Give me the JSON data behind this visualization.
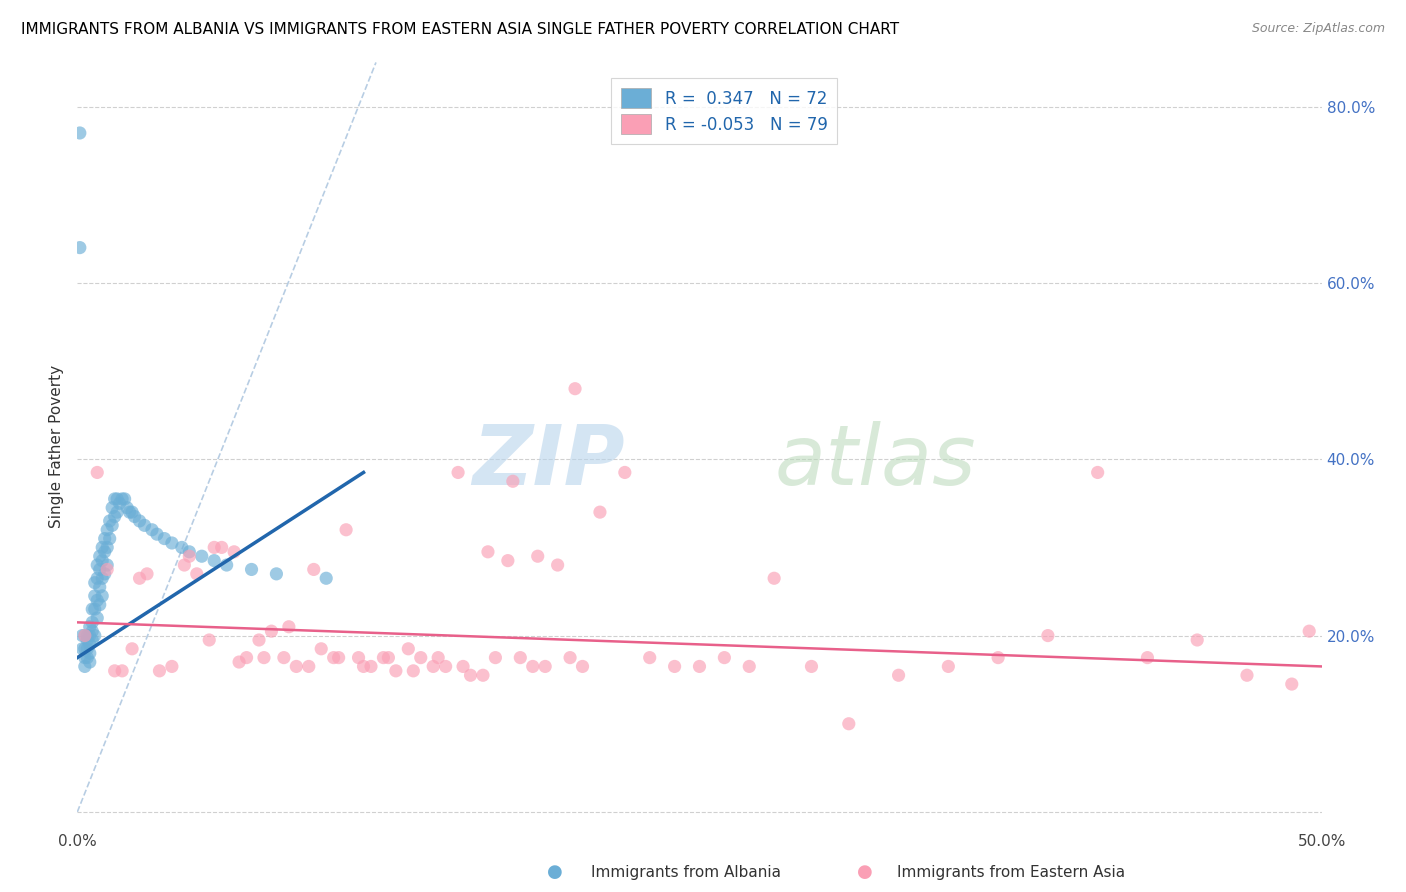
{
  "title": "IMMIGRANTS FROM ALBANIA VS IMMIGRANTS FROM EASTERN ASIA SINGLE FATHER POVERTY CORRELATION CHART",
  "source": "Source: ZipAtlas.com",
  "xlabel_albania": "Immigrants from Albania",
  "xlabel_eastern_asia": "Immigrants from Eastern Asia",
  "ylabel": "Single Father Poverty",
  "xlim": [
    0.0,
    0.5
  ],
  "ylim": [
    -0.02,
    0.85
  ],
  "color_albania": "#6baed6",
  "color_eastern_asia": "#fa9fb5",
  "color_albania_line": "#2166ac",
  "color_eastern_asia_line": "#e8608a",
  "color_dashed": "#b0c8e0",
  "albania_x": [
    0.001,
    0.001,
    0.002,
    0.002,
    0.003,
    0.003,
    0.003,
    0.003,
    0.004,
    0.004,
    0.004,
    0.004,
    0.005,
    0.005,
    0.005,
    0.005,
    0.005,
    0.006,
    0.006,
    0.006,
    0.006,
    0.007,
    0.007,
    0.007,
    0.007,
    0.008,
    0.008,
    0.008,
    0.008,
    0.009,
    0.009,
    0.009,
    0.009,
    0.01,
    0.01,
    0.01,
    0.01,
    0.011,
    0.011,
    0.011,
    0.012,
    0.012,
    0.012,
    0.013,
    0.013,
    0.014,
    0.014,
    0.015,
    0.015,
    0.016,
    0.016,
    0.017,
    0.018,
    0.019,
    0.02,
    0.021,
    0.022,
    0.023,
    0.025,
    0.027,
    0.03,
    0.032,
    0.035,
    0.038,
    0.042,
    0.045,
    0.05,
    0.055,
    0.06,
    0.07,
    0.08,
    0.1
  ],
  "albania_y": [
    0.77,
    0.64,
    0.2,
    0.185,
    0.2,
    0.185,
    0.175,
    0.165,
    0.2,
    0.195,
    0.185,
    0.175,
    0.21,
    0.2,
    0.19,
    0.18,
    0.17,
    0.23,
    0.215,
    0.205,
    0.195,
    0.26,
    0.245,
    0.23,
    0.2,
    0.28,
    0.265,
    0.24,
    0.22,
    0.29,
    0.275,
    0.255,
    0.235,
    0.3,
    0.285,
    0.265,
    0.245,
    0.31,
    0.295,
    0.27,
    0.32,
    0.3,
    0.28,
    0.33,
    0.31,
    0.345,
    0.325,
    0.355,
    0.335,
    0.355,
    0.34,
    0.35,
    0.355,
    0.355,
    0.345,
    0.34,
    0.34,
    0.335,
    0.33,
    0.325,
    0.32,
    0.315,
    0.31,
    0.305,
    0.3,
    0.295,
    0.29,
    0.285,
    0.28,
    0.275,
    0.27,
    0.265
  ],
  "eastern_asia_x": [
    0.003,
    0.008,
    0.012,
    0.018,
    0.022,
    0.028,
    0.033,
    0.038,
    0.043,
    0.048,
    0.053,
    0.058,
    0.063,
    0.068,
    0.073,
    0.078,
    0.083,
    0.088,
    0.093,
    0.098,
    0.103,
    0.108,
    0.113,
    0.118,
    0.123,
    0.128,
    0.133,
    0.138,
    0.143,
    0.148,
    0.153,
    0.158,
    0.163,
    0.168,
    0.173,
    0.178,
    0.183,
    0.188,
    0.193,
    0.198,
    0.203,
    0.21,
    0.22,
    0.23,
    0.24,
    0.25,
    0.26,
    0.27,
    0.28,
    0.295,
    0.31,
    0.33,
    0.35,
    0.37,
    0.39,
    0.41,
    0.43,
    0.45,
    0.47,
    0.488,
    0.495,
    0.015,
    0.025,
    0.045,
    0.055,
    0.065,
    0.075,
    0.085,
    0.095,
    0.105,
    0.115,
    0.125,
    0.135,
    0.145,
    0.155,
    0.165,
    0.175,
    0.185,
    0.2
  ],
  "eastern_asia_y": [
    0.2,
    0.385,
    0.275,
    0.16,
    0.185,
    0.27,
    0.16,
    0.165,
    0.28,
    0.27,
    0.195,
    0.3,
    0.295,
    0.175,
    0.195,
    0.205,
    0.175,
    0.165,
    0.165,
    0.185,
    0.175,
    0.32,
    0.175,
    0.165,
    0.175,
    0.16,
    0.185,
    0.175,
    0.165,
    0.165,
    0.385,
    0.155,
    0.155,
    0.175,
    0.285,
    0.175,
    0.165,
    0.165,
    0.28,
    0.175,
    0.165,
    0.34,
    0.385,
    0.175,
    0.165,
    0.165,
    0.175,
    0.165,
    0.265,
    0.165,
    0.1,
    0.155,
    0.165,
    0.175,
    0.2,
    0.385,
    0.175,
    0.195,
    0.155,
    0.145,
    0.205,
    0.16,
    0.265,
    0.29,
    0.3,
    0.17,
    0.175,
    0.21,
    0.275,
    0.175,
    0.165,
    0.175,
    0.16,
    0.175,
    0.165,
    0.295,
    0.375,
    0.29,
    0.48
  ]
}
